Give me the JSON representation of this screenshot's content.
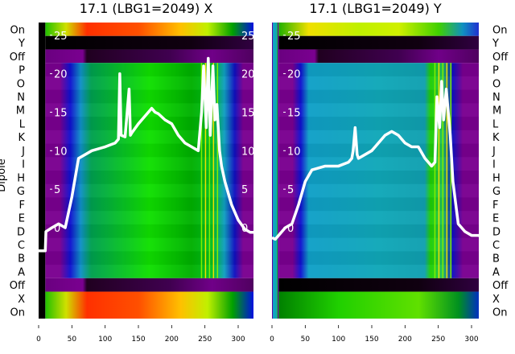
{
  "chart_data": [
    {
      "type": "heatmap",
      "title": "17.1 (LBG1=2049) X",
      "ylabel": "Dipole",
      "row_labels": [
        "On",
        "Y",
        "Off",
        "P",
        "O",
        "N",
        "M",
        "L",
        "K",
        "J",
        "I",
        "H",
        "G",
        "F",
        "E",
        "D",
        "C",
        "B",
        "A",
        "Off",
        "X",
        "On"
      ],
      "x_ticks": [
        "0",
        "50",
        "100",
        "150",
        "200",
        "250",
        "300"
      ],
      "xlim": [
        0,
        325
      ],
      "profile_yticks": [
        "25",
        "20",
        "15",
        "10",
        "5",
        "0"
      ],
      "profile_ylim": [
        -3.5,
        27
      ],
      "profile": {
        "x": [
          0,
          10,
          11,
          20,
          30,
          40,
          50,
          60,
          80,
          100,
          115,
          120,
          122,
          124,
          130,
          136,
          138,
          140,
          150,
          160,
          170,
          175,
          180,
          190,
          200,
          210,
          220,
          230,
          240,
          245,
          248,
          252,
          255,
          258,
          262,
          265,
          268,
          272,
          275,
          280,
          290,
          300,
          310,
          318,
          325
        ],
        "y": [
          -3,
          -3,
          -0.5,
          0,
          0.5,
          0,
          4,
          9,
          10,
          10.5,
          11,
          11.5,
          20,
          12,
          11.8,
          18,
          12,
          12.3,
          13.5,
          14.5,
          15.5,
          15,
          14.8,
          14,
          13.5,
          12,
          11,
          10.5,
          10,
          15,
          21,
          13,
          22,
          12,
          21,
          14,
          16,
          10,
          8,
          6,
          3,
          1,
          -0.2,
          -0.6,
          -0.6
        ]
      }
    },
    {
      "type": "heatmap",
      "title": "17.1 (LBG1=2049) Y",
      "row_labels": [
        "On",
        "Y",
        "Off",
        "P",
        "O",
        "N",
        "M",
        "L",
        "K",
        "J",
        "I",
        "H",
        "G",
        "F",
        "E",
        "D",
        "C",
        "B",
        "A",
        "Off",
        "X",
        "On"
      ],
      "x_ticks": [
        "0",
        "50",
        "100",
        "150",
        "200",
        "250",
        "300"
      ],
      "xlim": [
        0,
        325
      ],
      "profile_yticks": [
        "25",
        "20",
        "15",
        "10",
        "5",
        "0"
      ],
      "profile_ylim": [
        -3.5,
        27
      ],
      "profile": {
        "x": [
          0,
          5,
          10,
          20,
          30,
          40,
          50,
          60,
          80,
          100,
          115,
          120,
          122,
          125,
          128,
          130,
          150,
          160,
          170,
          180,
          190,
          200,
          210,
          220,
          230,
          240,
          245,
          248,
          252,
          255,
          258,
          262,
          265,
          268,
          272,
          280,
          290,
          300,
          310,
          320,
          325
        ],
        "y": [
          -1.3,
          -1.5,
          -1,
          0,
          0.5,
          3,
          6,
          7.5,
          8,
          8,
          8.5,
          9,
          10,
          13,
          9.5,
          9,
          10,
          11,
          12,
          12.5,
          12,
          11,
          10.5,
          10.5,
          9,
          8,
          8.5,
          17,
          13,
          19,
          14,
          18,
          15,
          12,
          6,
          0.5,
          -0.5,
          -1,
          -1,
          -1.3,
          -1.3
        ]
      }
    }
  ]
}
